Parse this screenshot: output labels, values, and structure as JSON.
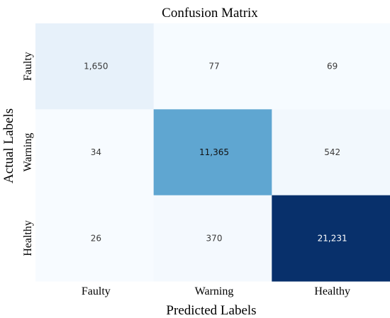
{
  "chart_data": {
    "type": "heatmap",
    "title": "Confusion Matrix",
    "xlabel": "Predicted Labels",
    "ylabel": "Actual Labels",
    "x_categories": [
      "Faulty",
      "Warning",
      "Healthy"
    ],
    "y_categories": [
      "Faulty",
      "Warning",
      "Healthy"
    ],
    "values": [
      [
        1650,
        77,
        69
      ],
      [
        34,
        11365,
        542
      ],
      [
        26,
        370,
        21231
      ]
    ],
    "cell_labels": [
      [
        "1,650",
        "77",
        "69"
      ],
      [
        "34",
        "11,365",
        "542"
      ],
      [
        "26",
        "370",
        "21,231"
      ]
    ],
    "colormap": "Blues",
    "value_range": [
      0,
      21231
    ],
    "colorbar": false,
    "grid": false
  }
}
